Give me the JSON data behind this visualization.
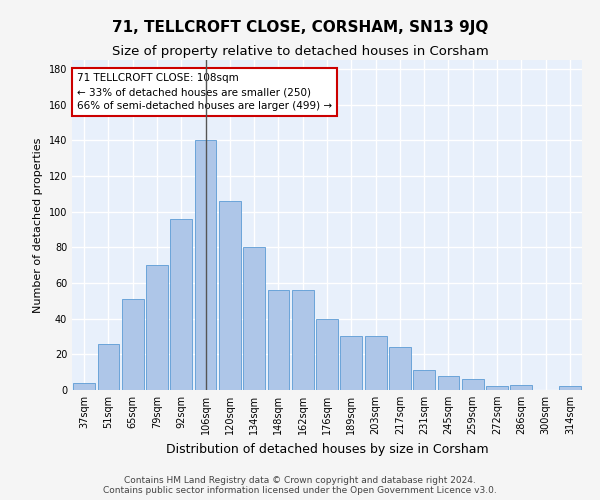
{
  "title": "71, TELLCROFT CLOSE, CORSHAM, SN13 9JQ",
  "subtitle": "Size of property relative to detached houses in Corsham",
  "xlabel": "Distribution of detached houses by size in Corsham",
  "ylabel": "Number of detached properties",
  "categories": [
    "37sqm",
    "51sqm",
    "65sqm",
    "79sqm",
    "92sqm",
    "106sqm",
    "120sqm",
    "134sqm",
    "148sqm",
    "162sqm",
    "176sqm",
    "189sqm",
    "203sqm",
    "217sqm",
    "231sqm",
    "245sqm",
    "259sqm",
    "272sqm",
    "286sqm",
    "300sqm",
    "314sqm"
  ],
  "values": [
    4,
    26,
    51,
    70,
    96,
    140,
    106,
    80,
    56,
    56,
    40,
    30,
    30,
    24,
    11,
    8,
    6,
    2,
    3,
    0,
    2
  ],
  "bar_color": "#aec6e8",
  "bar_edge_color": "#5b9bd5",
  "highlight_bar_index": 5,
  "highlight_line_color": "#555555",
  "annotation_text": "71 TELLCROFT CLOSE: 108sqm\n← 33% of detached houses are smaller (250)\n66% of semi-detached houses are larger (499) →",
  "annotation_box_color": "#ffffff",
  "annotation_box_edge_color": "#cc0000",
  "ylim": [
    0,
    185
  ],
  "yticks": [
    0,
    20,
    40,
    60,
    80,
    100,
    120,
    140,
    160,
    180
  ],
  "background_color": "#e8f0fb",
  "grid_color": "#ffffff",
  "footer_line1": "Contains HM Land Registry data © Crown copyright and database right 2024.",
  "footer_line2": "Contains public sector information licensed under the Open Government Licence v3.0.",
  "title_fontsize": 11,
  "subtitle_fontsize": 9.5,
  "xlabel_fontsize": 9,
  "ylabel_fontsize": 8,
  "annotation_fontsize": 7.5,
  "tick_fontsize": 7,
  "footer_fontsize": 6.5
}
